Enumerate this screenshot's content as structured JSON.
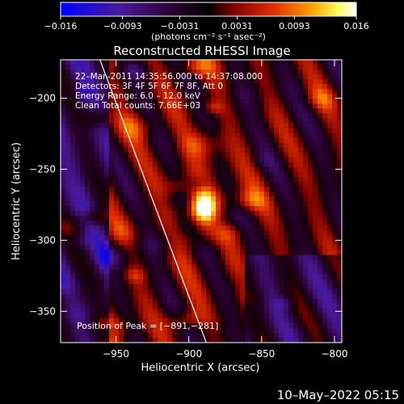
{
  "chart_data": {
    "type": "heatmap",
    "title": "Reconstructed RHESSI Image",
    "xlabel": "Heliocentric X (arcsec)",
    "ylabel": "Heliocentric Y (arcsec)",
    "xlim": [
      -988,
      -795
    ],
    "ylim": [
      -372,
      -173
    ],
    "x_ticks": [
      -950,
      -900,
      -850,
      -800
    ],
    "x_tick_labels": [
      "−950",
      "−900",
      "−850",
      "−800"
    ],
    "y_ticks": [
      -200,
      -250,
      -300,
      -350
    ],
    "y_tick_labels": [
      "−200",
      "−250",
      "−300",
      "−350"
    ],
    "colorbar": {
      "range": [
        -0.016,
        0.016
      ],
      "ticks": [
        -0.016,
        -0.0093,
        -0.0031,
        0.0031,
        0.0093,
        0.016
      ],
      "tick_labels": [
        "−0.016",
        "−0.0093",
        "−0.0031",
        "0.0031",
        "0.0093",
        "0.016"
      ],
      "unit_label": "(photons cm⁻² s⁻¹ asec⁻²)",
      "colormap": [
        "#0000ff",
        "#4a1a9a",
        "#2a0030",
        "#000000",
        "#7a0000",
        "#e03000",
        "#ffa000",
        "#ffff60",
        "#ffffff"
      ]
    },
    "annotations": [
      "22–Mar–2011 14:35:56.000 to 14:37:08.000",
      "Detectors: 3F 4F 5F 6F 7F 8F, Att 0",
      "Energy Range: 6.0 – 12.0 keV",
      "Clean    Total counts: 7.66E+03"
    ],
    "peak_label": "Position of Peak = [−891,−281]",
    "peak": {
      "x": -891,
      "y": -281
    },
    "limb_line": [
      {
        "x": -961,
        "y": -173
      },
      {
        "x": -888,
        "y": -372
      }
    ]
  },
  "footer": {
    "timestamp": "10–May–2022 05:15"
  }
}
